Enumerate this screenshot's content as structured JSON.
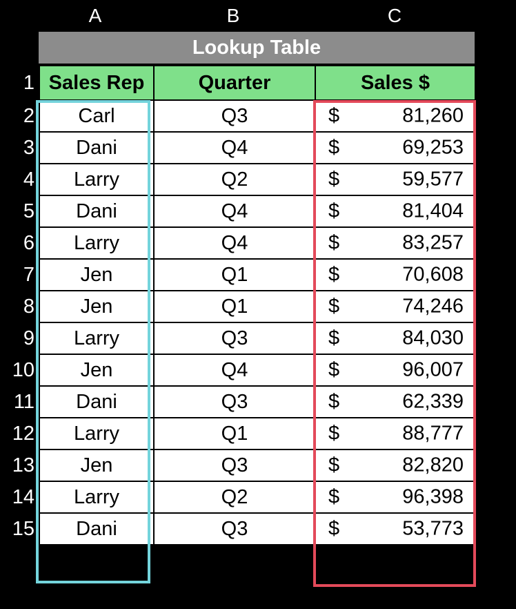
{
  "columns": [
    "A",
    "B",
    "C"
  ],
  "table": {
    "title": "Lookup Table",
    "header_row": "1",
    "headers": [
      "Sales Rep",
      "Quarter",
      "Sales $"
    ],
    "currency_symbol": "$",
    "rows": [
      {
        "num": "2",
        "rep": "Carl",
        "quarter": "Q3",
        "sales": "81,260"
      },
      {
        "num": "3",
        "rep": "Dani",
        "quarter": "Q4",
        "sales": "69,253"
      },
      {
        "num": "4",
        "rep": "Larry",
        "quarter": "Q2",
        "sales": "59,577"
      },
      {
        "num": "5",
        "rep": "Dani",
        "quarter": "Q4",
        "sales": "81,404"
      },
      {
        "num": "6",
        "rep": "Larry",
        "quarter": "Q4",
        "sales": "83,257"
      },
      {
        "num": "7",
        "rep": "Jen",
        "quarter": "Q1",
        "sales": "70,608"
      },
      {
        "num": "8",
        "rep": "Jen",
        "quarter": "Q1",
        "sales": "74,246"
      },
      {
        "num": "9",
        "rep": "Larry",
        "quarter": "Q3",
        "sales": "84,030"
      },
      {
        "num": "10",
        "rep": "Jen",
        "quarter": "Q4",
        "sales": "96,007"
      },
      {
        "num": "11",
        "rep": "Dani",
        "quarter": "Q3",
        "sales": "62,339"
      },
      {
        "num": "12",
        "rep": "Larry",
        "quarter": "Q1",
        "sales": "88,777"
      },
      {
        "num": "13",
        "rep": "Jen",
        "quarter": "Q3",
        "sales": "82,820"
      },
      {
        "num": "14",
        "rep": "Larry",
        "quarter": "Q2",
        "sales": "96,398"
      },
      {
        "num": "15",
        "rep": "Dani",
        "quarter": "Q3",
        "sales": "53,773"
      }
    ]
  },
  "colors": {
    "background": "#000000",
    "title_bar": "#8c8c8c",
    "header_fill": "#7fe08a",
    "highlight_rep_column": "#74d4dc",
    "highlight_sales_column": "#e34a5a"
  }
}
